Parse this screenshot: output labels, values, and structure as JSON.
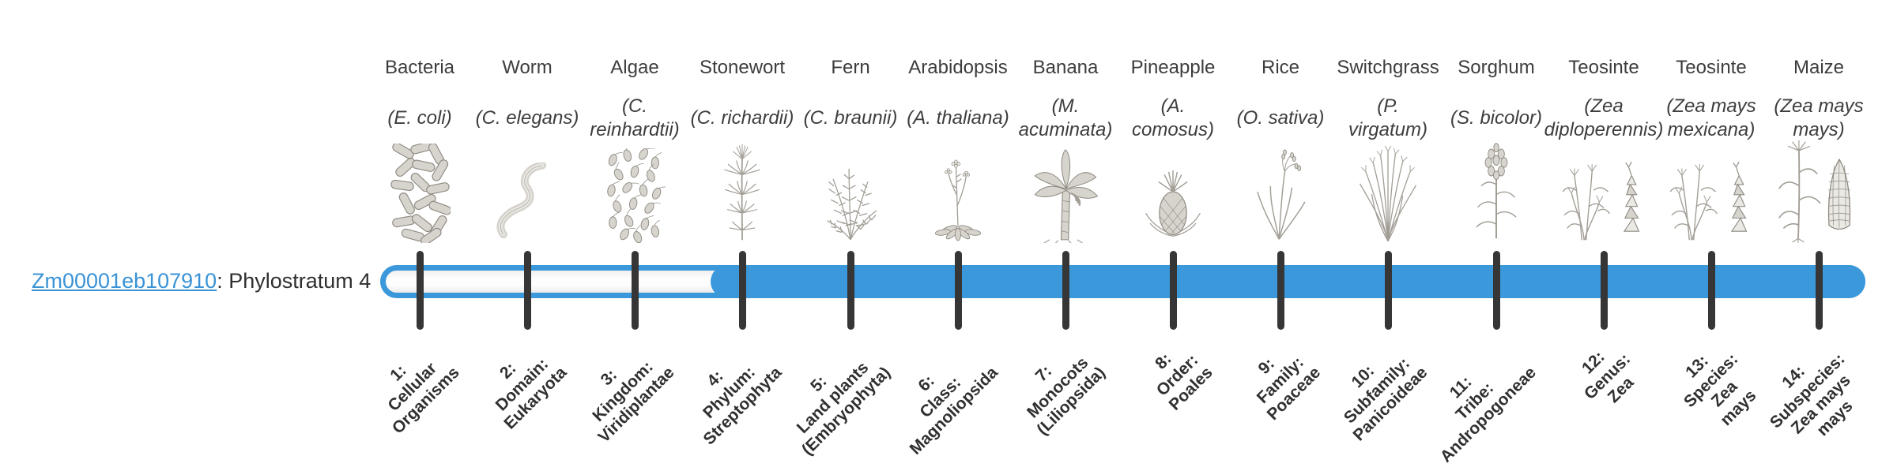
{
  "gene": {
    "id": "Zm00001eb107910",
    "suffix": ": Phylostratum 4",
    "phylostratum": 4
  },
  "colors": {
    "bar_blue": "#3b98da",
    "tick": "#363636",
    "link_blue": "#3a93d6",
    "text_dark": "#2f2f2f",
    "track_fill": "#f7f7f7"
  },
  "strata": [
    {
      "index": 1,
      "organism": "Bacteria",
      "sci_lines": [
        "(E. coli)"
      ],
      "icon": "bacteria-icon",
      "rank_lines": [
        "1:",
        "Cellular",
        "Organisms"
      ]
    },
    {
      "index": 2,
      "organism": "Worm",
      "sci_lines": [
        "(C. elegans)"
      ],
      "icon": "worm-icon",
      "rank_lines": [
        "2:",
        "Domain:",
        "Eukaryota"
      ]
    },
    {
      "index": 3,
      "organism": "Algae",
      "sci_lines": [
        "(C.",
        "reinhardtii)"
      ],
      "icon": "algae-icon",
      "rank_lines": [
        "3:",
        "Kingdom:",
        "Viridiplantae"
      ]
    },
    {
      "index": 4,
      "organism": "Stonewort",
      "sci_lines": [
        "(C. richardii)"
      ],
      "icon": "stonewort-icon",
      "rank_lines": [
        "4:",
        "Phylum:",
        "Streptophyta"
      ]
    },
    {
      "index": 5,
      "organism": "Fern",
      "sci_lines": [
        "(C. braunii)"
      ],
      "icon": "fern-icon",
      "rank_lines": [
        "5:",
        "Land plants",
        "(Embryophyta)"
      ]
    },
    {
      "index": 6,
      "organism": "Arabidopsis",
      "sci_lines": [
        "(A. thaliana)"
      ],
      "icon": "arabidopsis-icon",
      "rank_lines": [
        "6:",
        "Class:",
        "Magnoliopsida"
      ]
    },
    {
      "index": 7,
      "organism": "Banana",
      "sci_lines": [
        "(M.",
        "acuminata)"
      ],
      "icon": "banana-icon",
      "rank_lines": [
        "7:",
        "Monocots",
        "(Liliopsida)"
      ]
    },
    {
      "index": 8,
      "organism": "Pineapple",
      "sci_lines": [
        "(A.",
        "comosus)"
      ],
      "icon": "pineapple-icon",
      "rank_lines": [
        "8:",
        "Order:",
        "Poales"
      ]
    },
    {
      "index": 9,
      "organism": "Rice",
      "sci_lines": [
        "(O. sativa)"
      ],
      "icon": "rice-icon",
      "rank_lines": [
        "9:",
        "Family:",
        "Poaceae"
      ]
    },
    {
      "index": 10,
      "organism": "Switchgrass",
      "sci_lines": [
        "(P.",
        "virgatum)"
      ],
      "icon": "switchgrass-icon",
      "rank_lines": [
        "10:",
        "Subfamily:",
        "Panicoideae"
      ]
    },
    {
      "index": 11,
      "organism": "Sorghum",
      "sci_lines": [
        "(S. bicolor)"
      ],
      "icon": "sorghum-icon",
      "rank_lines": [
        "11:",
        "Tribe:",
        "Andropogoneae"
      ]
    },
    {
      "index": 12,
      "organism": "Teosinte",
      "sci_lines": [
        "(Zea",
        "diploperennis)"
      ],
      "icon": "teosinte-icon",
      "rank_lines": [
        "12:",
        "Genus:",
        "Zea"
      ]
    },
    {
      "index": 13,
      "organism": "Teosinte",
      "sci_lines": [
        "(Zea mays",
        "mexicana)"
      ],
      "icon": "teosinte-icon",
      "rank_lines": [
        "13:",
        "Species:",
        "Zea",
        "mays"
      ]
    },
    {
      "index": 14,
      "organism": "Maize",
      "sci_lines": [
        "(Zea mays",
        "mays)"
      ],
      "icon": "maize-icon",
      "rank_lines": [
        "14:",
        "Subspecies:",
        "Zea mays",
        "mays"
      ]
    }
  ],
  "chart_data": {
    "type": "bar",
    "orientation": "horizontal",
    "title": "Zm00001eb107910: Phylostratum 4",
    "categories": [
      "1: Cellular Organisms",
      "2: Domain: Eukaryota",
      "3: Kingdom: Viridiplantae",
      "4: Phylum: Streptophyta",
      "5: Land plants (Embryophyta)",
      "6: Class: Magnoliopsida",
      "7: Monocots (Liliopsida)",
      "8: Order: Poales",
      "9: Family: Poaceae",
      "10: Subfamily: Panicoideae",
      "11: Tribe: Andropogoneae",
      "12: Genus: Zea",
      "13: Species: Zea mays",
      "14: Subspecies: Zea mays mays"
    ],
    "top_axis_labels": [
      "Bacteria (E. coli)",
      "Worm (C. elegans)",
      "Algae (C. reinhardtii)",
      "Stonewort (C. richardii)",
      "Fern (C. braunii)",
      "Arabidopsis (A. thaliana)",
      "Banana (M. acuminata)",
      "Pineapple (A. comosus)",
      "Rice (O. sativa)",
      "Switchgrass (P. virgatum)",
      "Sorghum (S. bicolor)",
      "Teosinte (Zea diploperennis)",
      "Teosinte (Zea mays mexicana)",
      "Maize (Zea mays mays)"
    ],
    "series": [
      {
        "name": "track-outline (all strata)",
        "values": [
          1,
          1,
          1,
          1,
          1,
          1,
          1,
          1,
          1,
          1,
          1,
          1,
          1,
          1
        ]
      },
      {
        "name": "gene-age-fill (blue)",
        "values": [
          0,
          0,
          0,
          1,
          1,
          1,
          1,
          1,
          1,
          1,
          1,
          1,
          1,
          1
        ]
      }
    ],
    "fill_starts_at_stratum": 4,
    "track_range": [
      1,
      14
    ],
    "legend": "none",
    "grid": false
  }
}
